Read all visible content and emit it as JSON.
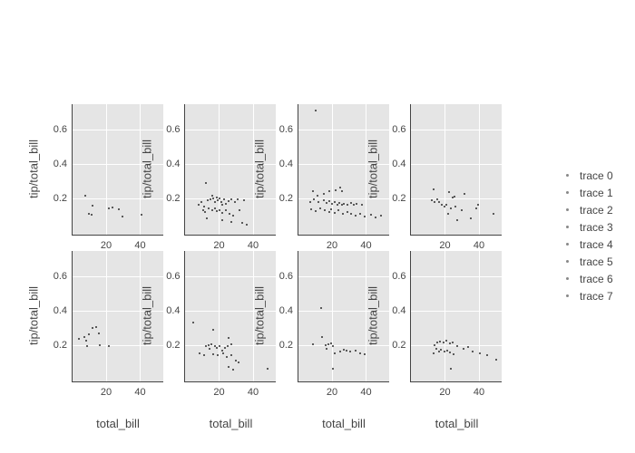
{
  "figure": {
    "background": "#ffffff",
    "plot_background": "#e5e5e5",
    "grid_color": "#ffffff",
    "axis_line_color": "#444444",
    "text_color": "#444444",
    "marker_color": "#2e2e2e"
  },
  "legend": {
    "items": [
      {
        "label": "trace 0"
      },
      {
        "label": "trace 1"
      },
      {
        "label": "trace 2"
      },
      {
        "label": "trace 3"
      },
      {
        "label": "trace 4"
      },
      {
        "label": "trace 5"
      },
      {
        "label": "trace 6"
      },
      {
        "label": "trace 7"
      }
    ]
  },
  "chart_data": {
    "type": "scatter",
    "layout": "2x4-subplot-grid",
    "title": "",
    "xlabel": "total_bill",
    "ylabel": "tip/total_bill",
    "x_ticks": [
      20,
      40
    ],
    "x_tick_labels": [
      "20",
      "40"
    ],
    "y_ticks": [
      0.2,
      0.4,
      0.6
    ],
    "y_tick_labels": [
      "0.2",
      "0.4",
      "0.6"
    ],
    "xlim": [
      0.27,
      53.6
    ],
    "ylim": [
      -0.011,
      0.747
    ],
    "grid": true,
    "legend_position": "right",
    "series": [
      {
        "name": "trace 0",
        "row": 0,
        "col": 0,
        "points": [
          [
            8,
            0.215
          ],
          [
            10,
            0.112
          ],
          [
            11.5,
            0.105
          ],
          [
            12,
            0.16
          ],
          [
            22,
            0.142
          ],
          [
            24,
            0.148
          ],
          [
            27.5,
            0.135
          ],
          [
            30,
            0.095
          ],
          [
            41,
            0.103
          ]
        ]
      },
      {
        "name": "trace 1",
        "row": 0,
        "col": 1,
        "points": [
          [
            12.5,
            0.29
          ],
          [
            16,
            0.214
          ],
          [
            9.9,
            0.18
          ],
          [
            8.1,
            0.165
          ],
          [
            11.6,
            0.153
          ],
          [
            13.4,
            0.19
          ],
          [
            15.2,
            0.193
          ],
          [
            17,
            0.2
          ],
          [
            17.9,
            0.18
          ],
          [
            18.8,
            0.205
          ],
          [
            19.7,
            0.19
          ],
          [
            20.5,
            0.2
          ],
          [
            21.4,
            0.18
          ],
          [
            22.3,
            0.161
          ],
          [
            23.2,
            0.193
          ],
          [
            24.1,
            0.17
          ],
          [
            25.9,
            0.182
          ],
          [
            27.7,
            0.193
          ],
          [
            29.4,
            0.18
          ],
          [
            31.2,
            0.193
          ],
          [
            34.8,
            0.19
          ],
          [
            10.8,
            0.134
          ],
          [
            12,
            0.12
          ],
          [
            14.3,
            0.143
          ],
          [
            16,
            0.13
          ],
          [
            17.9,
            0.14
          ],
          [
            19.1,
            0.126
          ],
          [
            20.5,
            0.134
          ],
          [
            22.3,
            0.117
          ],
          [
            24.1,
            0.13
          ],
          [
            26.3,
            0.109
          ],
          [
            28.6,
            0.1
          ],
          [
            32.1,
            0.134
          ],
          [
            13,
            0.082
          ],
          [
            22.3,
            0.074
          ],
          [
            27.7,
            0.065
          ],
          [
            33.9,
            0.056
          ],
          [
            36.6,
            0.047
          ]
        ]
      },
      {
        "name": "trace 2",
        "row": 0,
        "col": 2,
        "points": [
          [
            10.8,
            0.71
          ],
          [
            8.9,
            0.24
          ],
          [
            11.6,
            0.214
          ],
          [
            15.2,
            0.228
          ],
          [
            18.7,
            0.24
          ],
          [
            22.3,
            0.249
          ],
          [
            25,
            0.263
          ],
          [
            25.9,
            0.24
          ],
          [
            7.2,
            0.18
          ],
          [
            9.8,
            0.193
          ],
          [
            12.5,
            0.18
          ],
          [
            15.2,
            0.189
          ],
          [
            17,
            0.176
          ],
          [
            18.7,
            0.182
          ],
          [
            20.5,
            0.17
          ],
          [
            21.9,
            0.18
          ],
          [
            23.2,
            0.165
          ],
          [
            24.4,
            0.176
          ],
          [
            25.9,
            0.161
          ],
          [
            27.3,
            0.17
          ],
          [
            29.5,
            0.165
          ],
          [
            31.3,
            0.176
          ],
          [
            33.1,
            0.161
          ],
          [
            34.9,
            0.17
          ],
          [
            37.6,
            0.161
          ],
          [
            8.1,
            0.135
          ],
          [
            10.8,
            0.126
          ],
          [
            13.4,
            0.14
          ],
          [
            16.1,
            0.13
          ],
          [
            18.4,
            0.123
          ],
          [
            19.8,
            0.135
          ],
          [
            21.9,
            0.118
          ],
          [
            24.1,
            0.13
          ],
          [
            26.8,
            0.112
          ],
          [
            29.1,
            0.123
          ],
          [
            31.3,
            0.109
          ],
          [
            34,
            0.1
          ],
          [
            36.7,
            0.112
          ],
          [
            39.4,
            0.095
          ],
          [
            43,
            0.105
          ],
          [
            45.7,
            0.091
          ],
          [
            49.3,
            0.1
          ]
        ]
      },
      {
        "name": "trace 3",
        "row": 0,
        "col": 3,
        "points": [
          [
            13.5,
            0.254
          ],
          [
            22.9,
            0.237
          ],
          [
            24.7,
            0.205
          ],
          [
            25.6,
            0.21
          ],
          [
            31.8,
            0.228
          ],
          [
            12.3,
            0.188
          ],
          [
            14,
            0.179
          ],
          [
            15.8,
            0.193
          ],
          [
            16.7,
            0.179
          ],
          [
            18.5,
            0.161
          ],
          [
            19.9,
            0.153
          ],
          [
            21.1,
            0.165
          ],
          [
            22,
            0.109
          ],
          [
            23.8,
            0.143
          ],
          [
            26.4,
            0.153
          ],
          [
            27.3,
            0.074
          ],
          [
            30,
            0.134
          ],
          [
            35.3,
            0.082
          ],
          [
            38.9,
            0.143
          ],
          [
            39.8,
            0.161
          ],
          [
            48.7,
            0.112
          ]
        ]
      },
      {
        "name": "trace 4",
        "row": 1,
        "col": 0,
        "points": [
          [
            4.4,
            0.237
          ],
          [
            7.5,
            0.249
          ],
          [
            8.7,
            0.228
          ],
          [
            10,
            0.263
          ],
          [
            12.3,
            0.298
          ],
          [
            14.6,
            0.305
          ],
          [
            15.9,
            0.27
          ],
          [
            9,
            0.193
          ],
          [
            16.4,
            0.2
          ],
          [
            22.1,
            0.193
          ]
        ]
      },
      {
        "name": "trace 5",
        "row": 1,
        "col": 1,
        "points": [
          [
            5.2,
            0.333
          ],
          [
            16.7,
            0.288
          ],
          [
            25.6,
            0.24
          ],
          [
            12.3,
            0.193
          ],
          [
            14,
            0.2
          ],
          [
            14.9,
            0.179
          ],
          [
            15.8,
            0.205
          ],
          [
            17.6,
            0.193
          ],
          [
            18.8,
            0.182
          ],
          [
            20.3,
            0.196
          ],
          [
            22,
            0.17
          ],
          [
            23.8,
            0.182
          ],
          [
            25.2,
            0.193
          ],
          [
            27.3,
            0.205
          ],
          [
            8.7,
            0.153
          ],
          [
            11.4,
            0.144
          ],
          [
            16.7,
            0.147
          ],
          [
            19.4,
            0.14
          ],
          [
            22.9,
            0.153
          ],
          [
            24.7,
            0.13
          ],
          [
            27.3,
            0.14
          ],
          [
            30,
            0.112
          ],
          [
            31.8,
            0.1
          ],
          [
            25.6,
            0.074
          ],
          [
            28.3,
            0.056
          ],
          [
            48.7,
            0.065
          ]
        ]
      },
      {
        "name": "trace 6",
        "row": 1,
        "col": 2,
        "points": [
          [
            13.8,
            0.416
          ],
          [
            14.3,
            0.249
          ],
          [
            9.3,
            0.205
          ],
          [
            16.4,
            0.2
          ],
          [
            18.2,
            0.205
          ],
          [
            19.6,
            0.211
          ],
          [
            20.9,
            0.193
          ],
          [
            17.3,
            0.179
          ],
          [
            21.7,
            0.153
          ],
          [
            25.3,
            0.165
          ],
          [
            27,
            0.175
          ],
          [
            28.9,
            0.168
          ],
          [
            30.7,
            0.165
          ],
          [
            34.2,
            0.168
          ],
          [
            36.9,
            0.153
          ],
          [
            39.6,
            0.147
          ],
          [
            20.9,
            0.065
          ]
        ]
      },
      {
        "name": "trace 7",
        "row": 1,
        "col": 3,
        "points": [
          [
            14.1,
            0.2
          ],
          [
            15.9,
            0.214
          ],
          [
            17.3,
            0.223
          ],
          [
            19.5,
            0.217
          ],
          [
            21.2,
            0.228
          ],
          [
            23,
            0.211
          ],
          [
            24.8,
            0.217
          ],
          [
            15,
            0.179
          ],
          [
            16.8,
            0.165
          ],
          [
            18,
            0.175
          ],
          [
            19.8,
            0.162
          ],
          [
            21.6,
            0.17
          ],
          [
            23.3,
            0.158
          ],
          [
            25.1,
            0.147
          ],
          [
            13.8,
            0.153
          ],
          [
            27.5,
            0.196
          ],
          [
            31,
            0.179
          ],
          [
            33.7,
            0.188
          ],
          [
            36.4,
            0.162
          ],
          [
            40.8,
            0.153
          ],
          [
            45.3,
            0.144
          ],
          [
            50.6,
            0.118
          ],
          [
            23.9,
            0.065
          ]
        ]
      }
    ]
  }
}
